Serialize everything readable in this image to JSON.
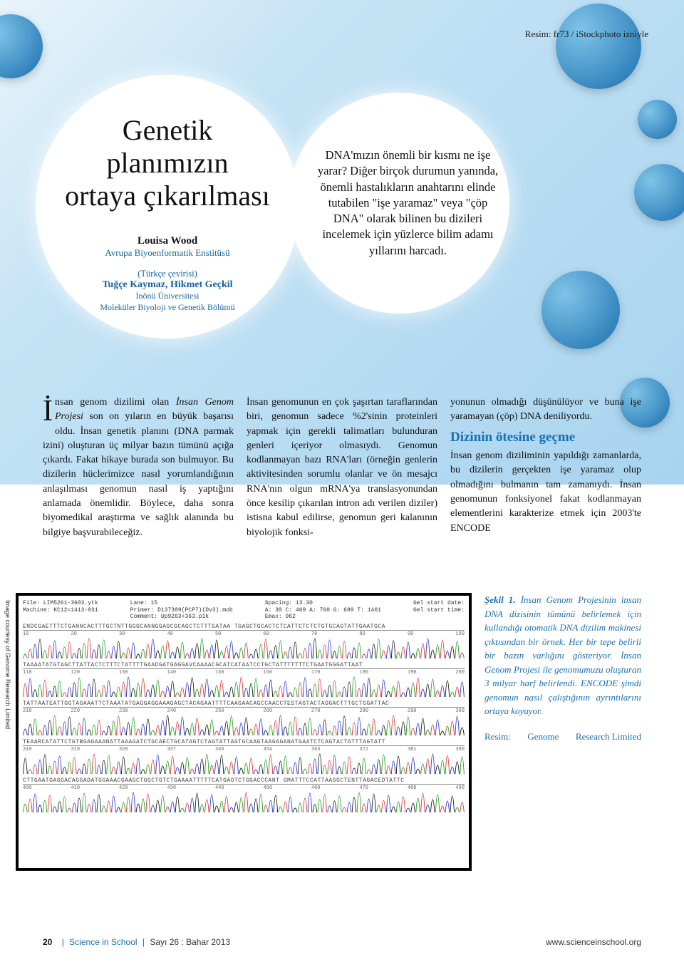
{
  "image_credit": "Resim: fr73 / iStockphoto izniyle",
  "title_circle": {
    "title_lines": [
      "Genetik",
      "planımızın",
      "ortaya çıkarılması"
    ],
    "author_name": "Louisa Wood",
    "author_affil": "Avrupa Biyoenformatik Enstitüsü",
    "translator_label": "(Türkçe çevirisi)",
    "translator_names": "Tuğçe Kaymaz, Hikmet Geçkil",
    "translator_affil1": "İnönü Üniversitesi",
    "translator_affil2": "Moleküler Biyoloji ve Genetik Bölümü"
  },
  "intro_text": "DNA'mızın önemli bir kısmı ne işe yarar? Diğer birçok durumun yanında, önemli hastalıkların anahtarını elinde tutabilen \"işe yaramaz\" veya \"çöp DNA\" olarak bilinen bu dizileri incelemek için yüzlerce bilim adamı yıllarını harcadı.",
  "body": {
    "col1_dropcap": "İ",
    "col1_first": "nsan genom dizilimi olan ",
    "col1_italic": "İnsan Genom Projesi",
    "col1_rest": " son on yıların en büyük başarısı oldu. İnsan genetik planını (DNA parmak izini) oluşturan üç milyar bazın tümünü açığa çıkardı. Fakat hikaye burada son bulmuyor. Bu dizilerin hüclerimizce nasıl yorumlandığının anlaşılması genom­un nasıl iş yaptığını anlamada önemlidir. Böylece, daha sonra biyomedikal araştırma ve sağlık alanında bu bilgiye başvurabileceğiz.",
    "col2": "İnsan genomunun en çok şaşırtan taraf­larından biri, genomun sadece %2'sinin proteinleri yapmak için gerekli talimat­ları bulunduran genleri içeriyor olmasıydı. Genomun kodlanmayan bazı RNA'ları (örneğin genlerin aktivitesi­nden sorumlu olanlar ve ön mesajcı RNA'nın olgun mRNA'ya translasyonu­ndan önce kesilip çıkarılan intron adı verilen diziler) istisna kabul edilirse, genomun geri kalanının biyolojik fonksi-",
    "col3_lead": "yonunun olmadığı düşünülüyor ve buna işe yaramayan (çöp) DNA deniliyordu.",
    "col3_head": "Dizinin ötesine geçme",
    "col3_rest": "İnsan genom diziliminin yapıldığı zamanlarda, bu dizilerin gerçekten işe yaramaz olup olmadığını bulmanın tam zamanıydı. İnsan genomunun fonksiyonel fakat kodlanmayan elementlerini karak­terize etmek için 2003'te ENCODE"
  },
  "chromatogram": {
    "side_credit": "Image courtesy of Genome Research Limited",
    "header": {
      "left": [
        "File: LIM5261-3603.ytk",
        "Machine: KC12=1413-031",
        ""
      ],
      "mid": [
        "Lane: 15",
        "Primer: D137309(PCP7)(Dv3).mob",
        "Comment: Up9263+363.p1k"
      ],
      "right1": [
        "Spacing: 13.30",
        "A: 30 C: 469 A: 760 G: 689 T: 1461",
        "Emax: 962"
      ],
      "right2": [
        "Gel start date:",
        "Gel start time:",
        ""
      ]
    },
    "rows": [
      {
        "seq": "ENDCGAETTTCTGANNCACTTTGCTNTTGGGCANNGGAGCGCAGCTCTTTGATAA TGAGCTGCACTCTCATTCTCTCTGTGCAGTATTGAATGCA",
        "start": 10,
        "end": 100
      },
      {
        "seq": "TAAAATATGTAGCTTATTACTCTTTCTATTTTGAADGATGAGGAVCAAAACGCATCATAATCCTGCTATTTTTTTCTGAATGGGATTAAT",
        "start": 110,
        "end": 200
      },
      {
        "seq": "TATTAATEATTGGTAGAAATTCTAAATATGAGGAGGAAAGAGCTACAGAATTTTCAAGAACAGCCAACCTESTAGTACTAGGACTTTGCTGGATTAC",
        "start": 210,
        "end": 300
      },
      {
        "seq": "TEAARCATATTCTGTBGAGAAANATTAAAGATCTGCAECTGCATAGTCTAGTATTAGTGCAAGTAAGAGANATGAATCTCAGTACTATTTAGTATT",
        "start": 310,
        "end": 390
      },
      {
        "seq": "CTTGAATGAGGACAGGADATGGAAACGAAGCTGGCTGTCTGAAAATTTTTCATGAOTCTGGACCCANT GMATTTCCATTAAGGCTENTTAGACEDTATTC",
        "start": 400,
        "end": 490
      }
    ],
    "peak_colors": [
      "#1a9e1a",
      "#e03030",
      "#2030d0",
      "#111111"
    ]
  },
  "figure_caption": {
    "label": "Şekil 1.",
    "text": " İnsan Genom Projesinin insan DNA dizisinin tümünü belirlemek için kullandığı otomatik DNA dizilim makinesi çıktısından bir örnek. Her bir tepe belirli bir bazın varlığını gösteriyor. İnsan Genom Projesi ile genomumuzu oluşturan 3 milyar harf belirlendi. ENCODE şimdi genomun nasıl çalıştığının ayrıntılarını ortaya koyuyor.",
    "credit_label": "Resim:",
    "credit_mid": "Genome",
    "credit_right": "Research Limited"
  },
  "footer": {
    "page": "20",
    "mag": "Science in School",
    "issue": "Sayı 26 : Bahar 2013",
    "url": "www.scienceinschool.org"
  },
  "colors": {
    "brand_blue": "#1a6fb0"
  }
}
